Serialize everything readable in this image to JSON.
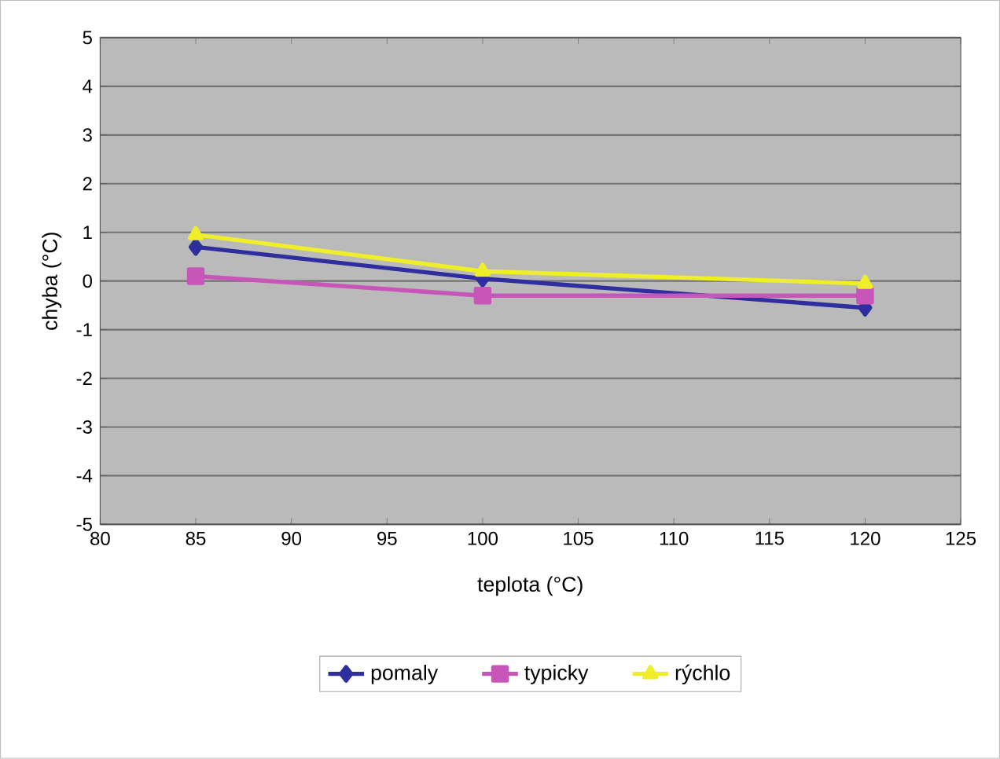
{
  "chart_data": {
    "type": "line",
    "xlabel": "teplota (°C)",
    "ylabel": "chyba (°C)",
    "x": [
      85,
      100,
      120
    ],
    "series": [
      {
        "name": "pomaly",
        "color": "#2e2e9e",
        "marker": "diamond",
        "values": [
          0.7,
          0.05,
          -0.55
        ]
      },
      {
        "name": "typicky",
        "color": "#c855b8",
        "marker": "square",
        "values": [
          0.1,
          -0.3,
          -0.3
        ]
      },
      {
        "name": "rýchlo",
        "color": "#eeee2a",
        "marker": "triangle",
        "values": [
          0.95,
          0.2,
          -0.05
        ]
      }
    ],
    "xlim": [
      80,
      125
    ],
    "xticks": [
      80,
      85,
      90,
      95,
      100,
      105,
      110,
      115,
      120,
      125
    ],
    "ylim": [
      -5,
      5
    ],
    "yticks": [
      -5,
      -4,
      -3,
      -2,
      -1,
      0,
      1,
      2,
      3,
      4,
      5
    ],
    "grid": "y",
    "legend": "bottom",
    "line_style": "solid"
  }
}
